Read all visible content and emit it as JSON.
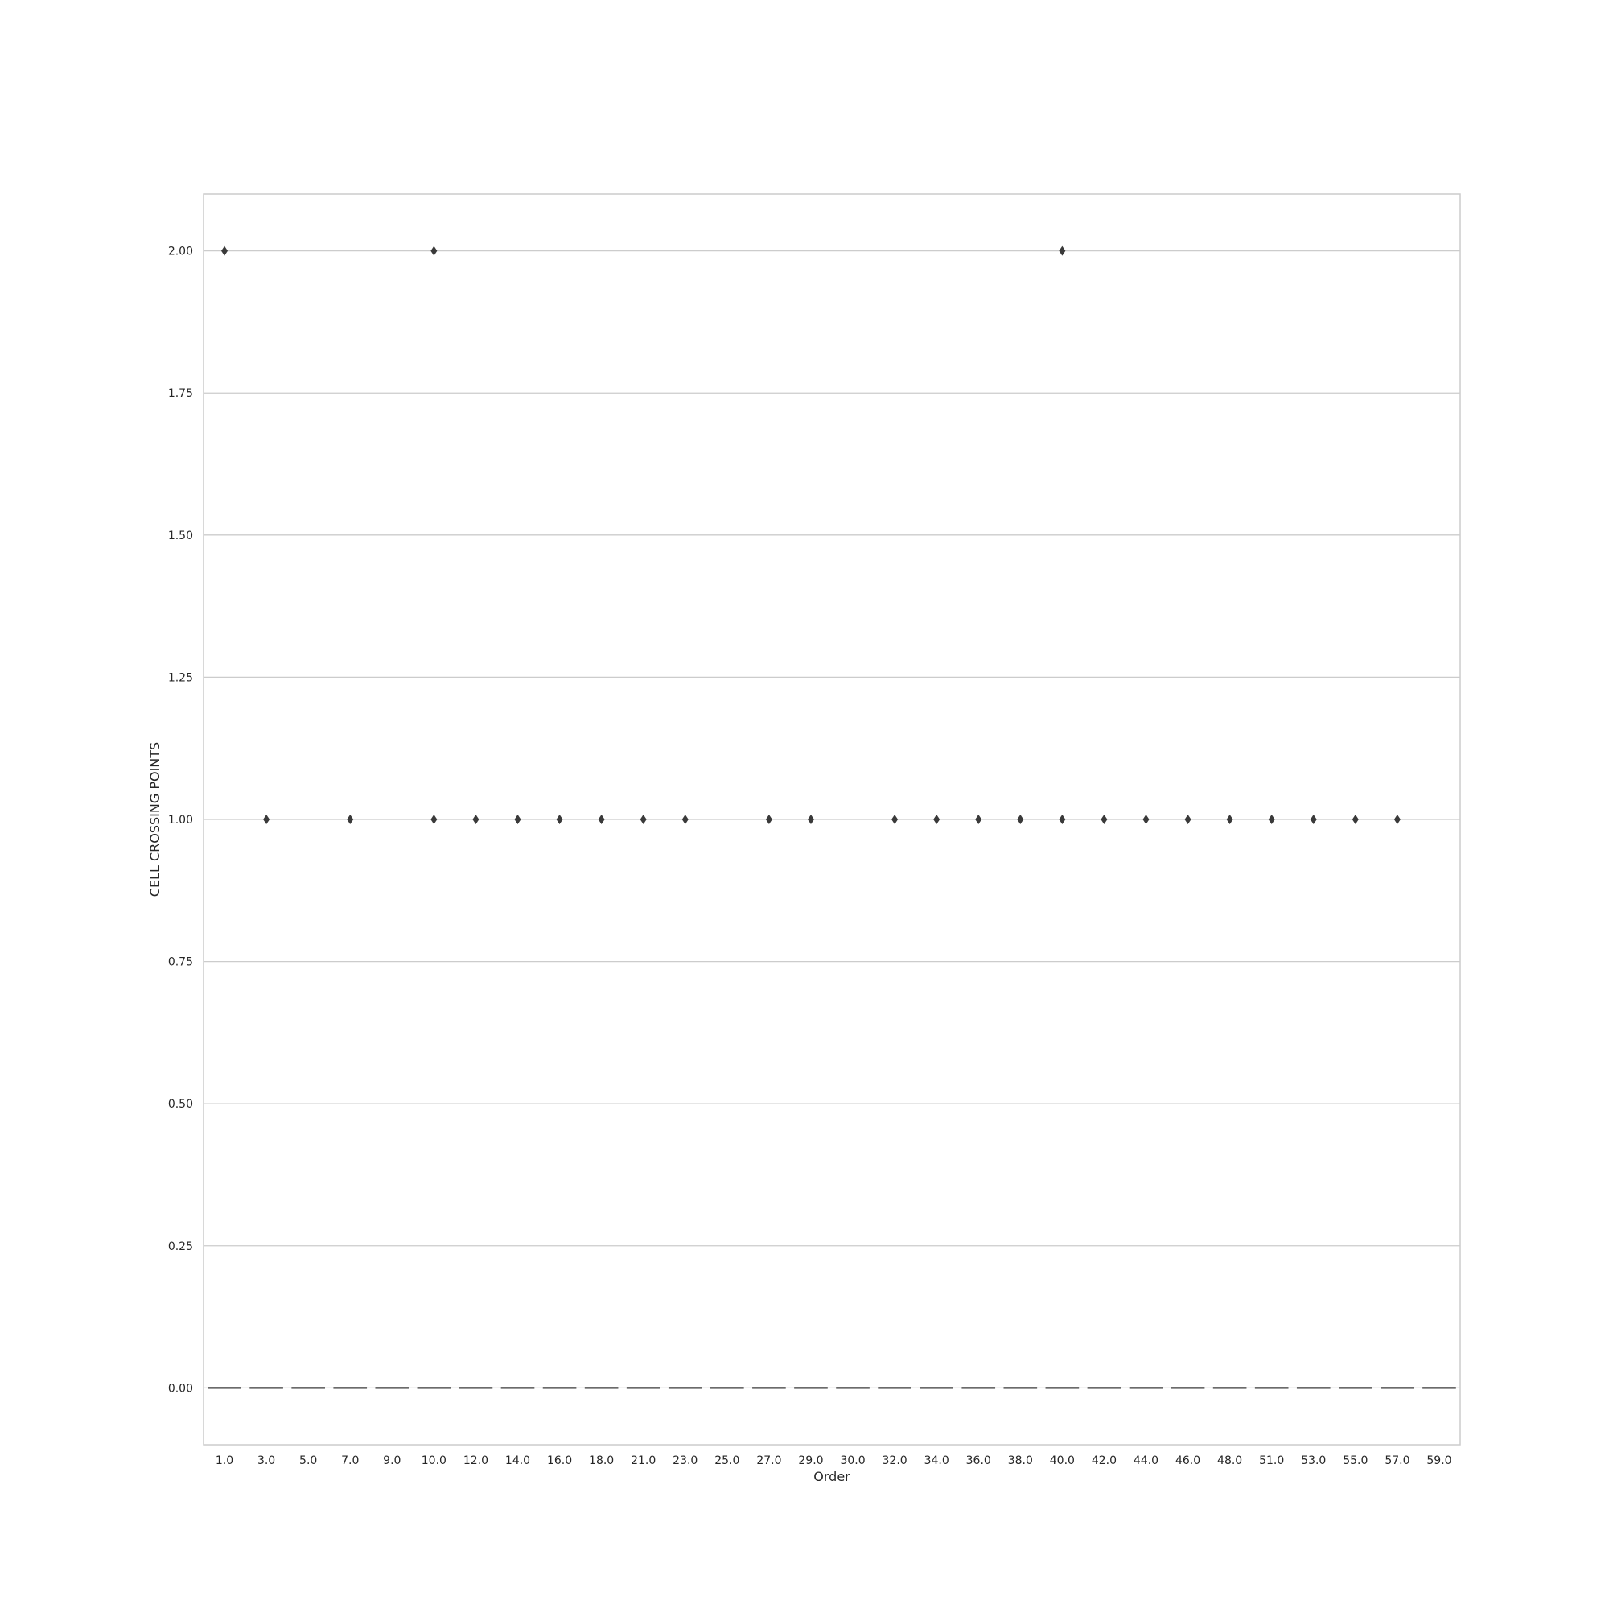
{
  "chart_data": {
    "type": "box",
    "xlabel": "Order",
    "ylabel": "CELL CROSSING POINTS",
    "ylim": [
      -0.1,
      2.1
    ],
    "yticks": [
      "0.00",
      "0.25",
      "0.50",
      "0.75",
      "1.00",
      "1.25",
      "1.50",
      "1.75",
      "2.00"
    ],
    "ytick_values": [
      0,
      0.25,
      0.5,
      0.75,
      1.0,
      1.25,
      1.5,
      1.75,
      2.0
    ],
    "grid": true,
    "categories": [
      "1.0",
      "3.0",
      "5.0",
      "7.0",
      "9.0",
      "10.0",
      "12.0",
      "14.0",
      "16.0",
      "18.0",
      "21.0",
      "23.0",
      "25.0",
      "27.0",
      "29.0",
      "30.0",
      "32.0",
      "34.0",
      "36.0",
      "38.0",
      "40.0",
      "42.0",
      "44.0",
      "46.0",
      "48.0",
      "51.0",
      "53.0",
      "55.0",
      "57.0",
      "59.0"
    ],
    "median": [
      0,
      0,
      0,
      0,
      0,
      0,
      0,
      0,
      0,
      0,
      0,
      0,
      0,
      0,
      0,
      0,
      0,
      0,
      0,
      0,
      0,
      0,
      0,
      0,
      0,
      0,
      0,
      0,
      0,
      0
    ],
    "outliers": [
      {
        "category": "1.0",
        "value": 2
      },
      {
        "category": "3.0",
        "value": 1
      },
      {
        "category": "7.0",
        "value": 1
      },
      {
        "category": "10.0",
        "value": 2
      },
      {
        "category": "10.0",
        "value": 1
      },
      {
        "category": "12.0",
        "value": 1
      },
      {
        "category": "14.0",
        "value": 1
      },
      {
        "category": "16.0",
        "value": 1
      },
      {
        "category": "18.0",
        "value": 1
      },
      {
        "category": "21.0",
        "value": 1
      },
      {
        "category": "23.0",
        "value": 1
      },
      {
        "category": "27.0",
        "value": 1
      },
      {
        "category": "29.0",
        "value": 1
      },
      {
        "category": "32.0",
        "value": 1
      },
      {
        "category": "34.0",
        "value": 1
      },
      {
        "category": "36.0",
        "value": 1
      },
      {
        "category": "38.0",
        "value": 1
      },
      {
        "category": "40.0",
        "value": 2
      },
      {
        "category": "40.0",
        "value": 1
      },
      {
        "category": "42.0",
        "value": 1
      },
      {
        "category": "44.0",
        "value": 1
      },
      {
        "category": "46.0",
        "value": 1
      },
      {
        "category": "48.0",
        "value": 1
      },
      {
        "category": "51.0",
        "value": 1
      },
      {
        "category": "53.0",
        "value": 1
      },
      {
        "category": "55.0",
        "value": 1
      },
      {
        "category": "57.0",
        "value": 1
      }
    ],
    "colors": {
      "grid": "#cccccc",
      "axes_frame": "#cccccc",
      "marks": "#3a3a3a",
      "text": "#262626"
    }
  }
}
